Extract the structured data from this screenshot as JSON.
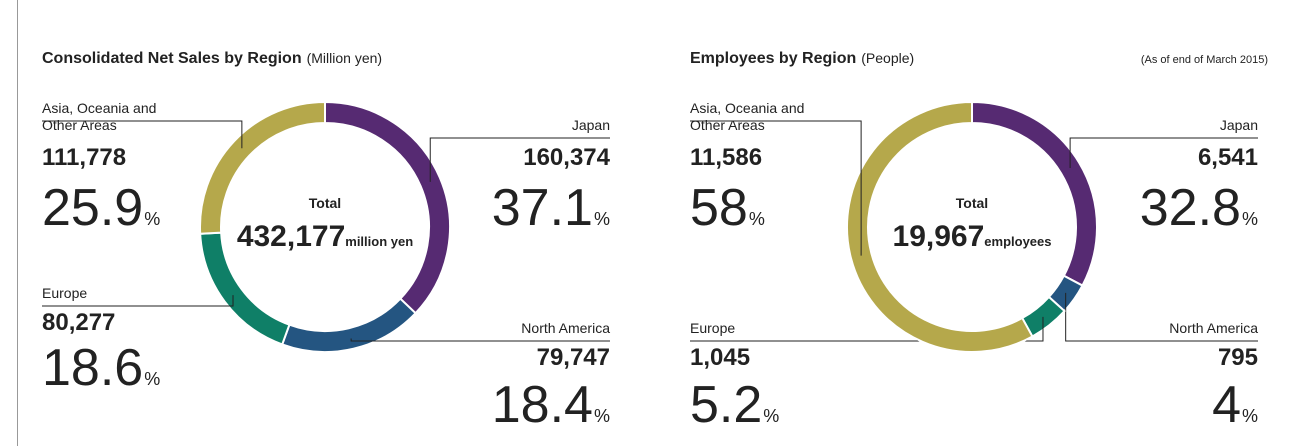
{
  "chart_data": [
    {
      "type": "pie",
      "title": "Consolidated Net Sales by Region",
      "title_unit": "(Million yen)",
      "categories": [
        "Japan",
        "North America",
        "Europe",
        "Asia, Oceania and\nOther Areas"
      ],
      "values": [
        160374,
        79747,
        80277,
        111778
      ],
      "value_labels": [
        "160,374",
        "79,747",
        "80,277",
        "111,778"
      ],
      "percents": [
        37.1,
        18.4,
        18.6,
        25.9
      ],
      "percent_unit": "%",
      "colors": [
        "#562a72",
        "#245581",
        "#0f7f67",
        "#b5a84b"
      ],
      "total_title": "Total",
      "total": {
        "value": 432177,
        "label": "432,177"
      },
      "total_unit": "million yen"
    },
    {
      "type": "pie",
      "title": "Employees by Region",
      "title_unit": "(People)",
      "note": "(As of end of March 2015)",
      "categories": [
        "Japan",
        "North America",
        "Europe",
        "Asia, Oceania and\nOther Areas"
      ],
      "values": [
        6541,
        795,
        1045,
        11586
      ],
      "value_labels": [
        "6,541",
        "795",
        "1,045",
        "11,586"
      ],
      "percents": [
        32.8,
        4.0,
        5.2,
        58.0
      ],
      "percent_unit": "%",
      "colors": [
        "#562a72",
        "#245581",
        "#0f7f67",
        "#b5a84b"
      ],
      "total_title": "Total",
      "total": {
        "value": 19967,
        "label": "19,967"
      },
      "total_unit": "employees"
    }
  ]
}
